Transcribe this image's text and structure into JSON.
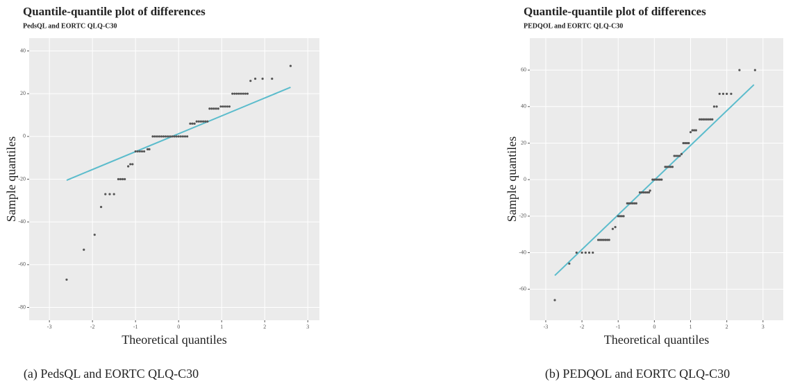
{
  "chart_data": [
    {
      "type": "scatter",
      "title": "Quantile-quantile plot of differences",
      "subtitle": "PedsQL and EORTC QLQ-C30",
      "x_label": "Theoretical quantiles",
      "y_label": "Sample quantiles",
      "caption": "(a) PedsQL and EORTC QLQ-C30",
      "xlim": [
        -3.47,
        3.27
      ],
      "ylim": [
        -86,
        46
      ],
      "xticks": [
        -3,
        -2,
        -1,
        0,
        1,
        2,
        3
      ],
      "yticks": [
        -80,
        -60,
        -40,
        -20,
        0,
        20,
        40
      ],
      "grid": true,
      "series": [
        {
          "color": "#555555",
          "x": [
            -2.6,
            -2.2,
            -1.95,
            -1.8,
            -1.7,
            -1.6,
            -1.5,
            -1.4,
            -1.35,
            -1.3,
            -1.25,
            -1.17,
            -1.12,
            -1.07,
            -1.0,
            -0.95,
            -0.9,
            -0.85,
            -0.8,
            -0.72,
            -0.68,
            -0.6,
            -0.55,
            -0.5,
            -0.45,
            -0.4,
            -0.35,
            -0.3,
            -0.25,
            -0.2,
            -0.15,
            -0.1,
            -0.05,
            0,
            0.05,
            0.1,
            0.15,
            0.2,
            0.27,
            0.32,
            0.37,
            0.42,
            0.47,
            0.52,
            0.57,
            0.62,
            0.67,
            0.72,
            0.77,
            0.82,
            0.87,
            0.92,
            0.98,
            1.03,
            1.08,
            1.13,
            1.18,
            1.25,
            1.3,
            1.35,
            1.4,
            1.45,
            1.5,
            1.55,
            1.6,
            1.67,
            1.78,
            1.95,
            2.17,
            2.6
          ],
          "values": [
            -67,
            -53,
            -46,
            -33,
            -27,
            -27,
            -27,
            -20,
            -20,
            -20,
            -20,
            -14,
            -13,
            -13,
            -7,
            -7,
            -7,
            -7,
            -7,
            -6,
            -6,
            0,
            0,
            0,
            0,
            0,
            0,
            0,
            0,
            0,
            0,
            0,
            0,
            0,
            0,
            0,
            0,
            0,
            6,
            6,
            6,
            7,
            7,
            7,
            7,
            7,
            7,
            13,
            13,
            13,
            13,
            13,
            14,
            14,
            14,
            14,
            14,
            20,
            20,
            20,
            20,
            20,
            20,
            20,
            20,
            26,
            27,
            27,
            27,
            33
          ]
        }
      ],
      "line": {
        "color": "#5bbccc",
        "x": [
          -2.6,
          2.6
        ],
        "y": [
          -20.5,
          23
        ]
      }
    },
    {
      "type": "scatter",
      "title": "Quantile-quantile plot of differences",
      "subtitle": "PEDQOL and EORTC QLQ-C30",
      "x_label": "Theoretical quantiles",
      "y_label": "Sample quantiles",
      "caption": "(b) PEDQOL and EORTC QLQ-C30",
      "xlim": [
        -3.44,
        3.56
      ],
      "ylim": [
        -77,
        77.5
      ],
      "xticks": [
        -3,
        -2,
        -1,
        0,
        1,
        2,
        3
      ],
      "yticks": [
        -60,
        -40,
        -20,
        0,
        20,
        40,
        60
      ],
      "grid": true,
      "series": [
        {
          "color": "#555555",
          "x": [
            -2.75,
            -2.35,
            -2.15,
            -2.0,
            -1.9,
            -1.8,
            -1.7,
            -1.55,
            -1.5,
            -1.45,
            -1.4,
            -1.35,
            -1.3,
            -1.25,
            -1.15,
            -1.08,
            -1.0,
            -0.95,
            -0.9,
            -0.85,
            -0.75,
            -0.7,
            -0.65,
            -0.6,
            -0.55,
            -0.5,
            -0.4,
            -0.35,
            -0.3,
            -0.25,
            -0.2,
            -0.15,
            -0.12,
            -0.05,
            0,
            0.05,
            0.1,
            0.15,
            0.2,
            0.3,
            0.35,
            0.4,
            0.45,
            0.5,
            0.55,
            0.6,
            0.65,
            0.7,
            0.75,
            0.8,
            0.85,
            0.9,
            0.95,
            1.0,
            1.05,
            1.1,
            1.15,
            1.25,
            1.3,
            1.35,
            1.4,
            1.45,
            1.5,
            1.55,
            1.6,
            1.65,
            1.72,
            1.8,
            1.9,
            2.0,
            2.12,
            2.35,
            2.78
          ],
          "values": [
            -66,
            -46,
            -40,
            -40,
            -40,
            -40,
            -40,
            -33,
            -33,
            -33,
            -33,
            -33,
            -33,
            -33,
            -27,
            -26,
            -20,
            -20,
            -20,
            -20,
            -13,
            -13,
            -13,
            -13,
            -13,
            -13,
            -7,
            -7,
            -7,
            -7,
            -7,
            -7,
            -6,
            0,
            0,
            0,
            0,
            0,
            0,
            7,
            7,
            7,
            7,
            7,
            13,
            13,
            13,
            13,
            14,
            20,
            20,
            20,
            20,
            26,
            27,
            27,
            27,
            33,
            33,
            33,
            33,
            33,
            33,
            33,
            33,
            40,
            40,
            47,
            47,
            47,
            47,
            60,
            60
          ]
        }
      ],
      "line": {
        "color": "#5bbccc",
        "x": [
          -2.75,
          2.75
        ],
        "y": [
          -52.5,
          52
        ]
      }
    }
  ]
}
